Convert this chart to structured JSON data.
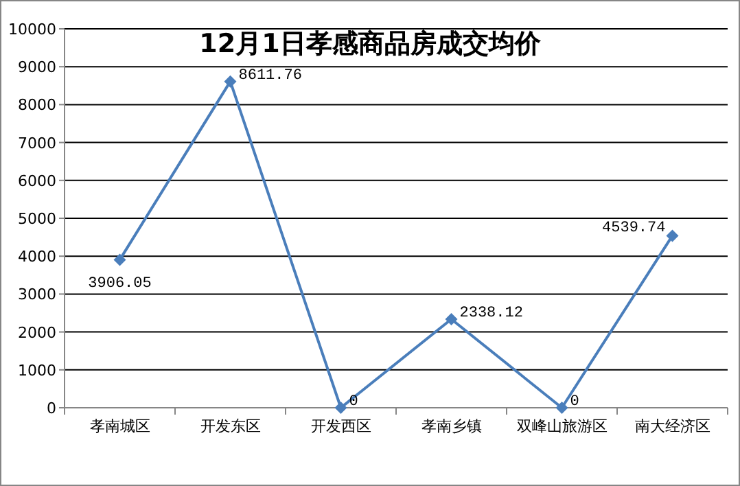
{
  "chart_data": {
    "type": "line",
    "title": "12月1日孝感商品房成交均价",
    "categories": [
      "孝南城区",
      "开发东区",
      "开发西区",
      "孝南乡镇",
      "双峰山旅游区",
      "南大经济区"
    ],
    "values": [
      3906.05,
      8611.76,
      0,
      2338.12,
      0,
      4539.74
    ],
    "color": "#4a7ebb",
    "marker": "diamond",
    "data_labels": true,
    "grid": "y",
    "ylim": [
      0,
      10000
    ],
    "yticks": [
      0,
      1000,
      2000,
      3000,
      4000,
      5000,
      6000,
      7000,
      8000,
      9000,
      10000
    ]
  }
}
